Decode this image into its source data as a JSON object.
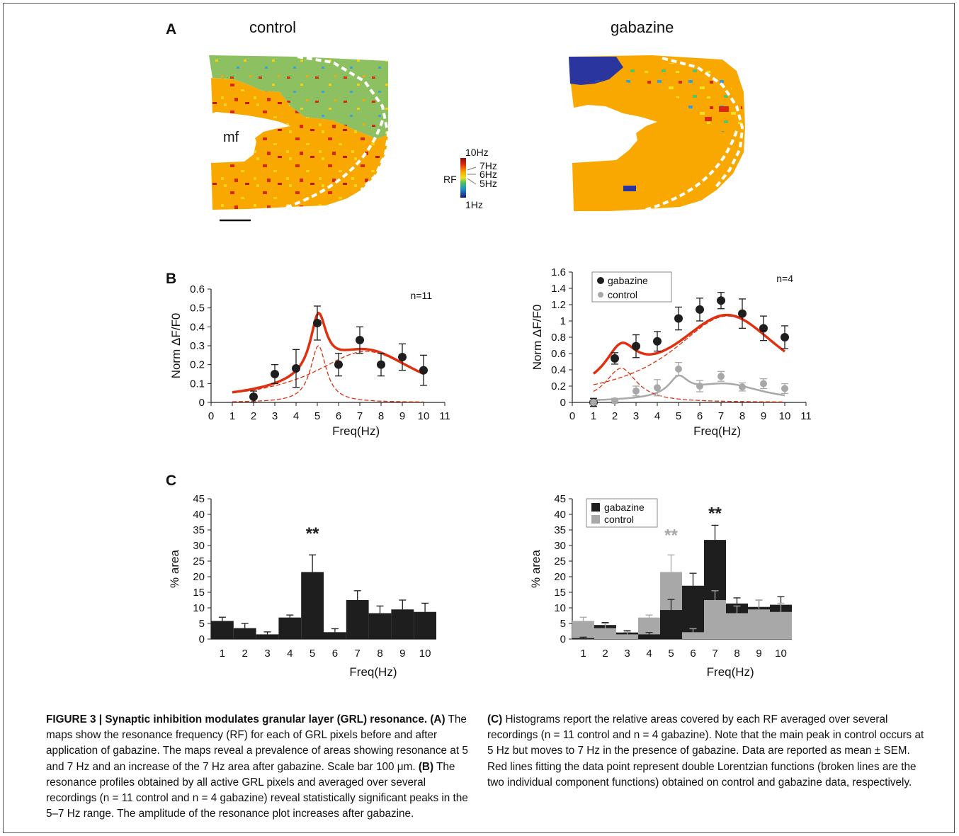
{
  "panel_labels": {
    "a": "A",
    "b": "B",
    "c": "C"
  },
  "panel_a": {
    "title_left": "control",
    "title_right": "gabazine",
    "mf_label": "mf",
    "colorbar": {
      "label": "RF",
      "top": "10Hz",
      "t7": "7Hz",
      "t6": "6Hz",
      "t5": "5Hz",
      "bottom": "1Hz"
    }
  },
  "colors": {
    "red": "#e03010",
    "black": "#1e1e1e",
    "gray": "#a8a8a8",
    "map_green": "#8cc060",
    "map_orange": "#f8a800"
  },
  "chart_data": [
    {
      "id": "b_left",
      "type": "line",
      "annotation": "n=11",
      "xlabel": "Freq(Hz)",
      "ylabel": "Norm ΔF/F0",
      "xlim": [
        0,
        11
      ],
      "ylim": [
        0,
        0.6
      ],
      "x_ticks": [
        "0",
        "1",
        "2",
        "3",
        "4",
        "5",
        "6",
        "7",
        "8",
        "9",
        "10",
        "11"
      ],
      "y_ticks": [
        "0",
        "0.1",
        "0.2",
        "0.3",
        "0.4",
        "0.5",
        "0.6"
      ],
      "series": [
        {
          "x": [
            2,
            3,
            4,
            5,
            6,
            7,
            8,
            9,
            10
          ],
          "y": [
            0.03,
            0.15,
            0.18,
            0.42,
            0.2,
            0.33,
            0.2,
            0.24,
            0.17
          ],
          "err": [
            0.03,
            0.05,
            0.1,
            0.09,
            0.06,
            0.07,
            0.06,
            0.07,
            0.08
          ]
        }
      ]
    },
    {
      "id": "b_right",
      "type": "line",
      "annotation": "n=4",
      "xlabel": "Freq(Hz)",
      "ylabel": "Norm ΔF/F0",
      "xlim": [
        0,
        11
      ],
      "ylim": [
        0,
        1.6
      ],
      "x_ticks": [
        "0",
        "1",
        "2",
        "3",
        "4",
        "5",
        "6",
        "7",
        "8",
        "9",
        "10",
        "11"
      ],
      "y_ticks": [
        "0",
        "0.2",
        "0.4",
        "0.6",
        "0.8",
        "1",
        "1.2",
        "1.4",
        "1.6"
      ],
      "legend": [
        "gabazine",
        "control"
      ],
      "series": [
        {
          "name": "gabazine",
          "x": [
            1,
            2,
            3,
            4,
            5,
            6,
            7,
            8,
            9,
            10
          ],
          "y": [
            0,
            0.54,
            0.69,
            0.75,
            1.03,
            1.14,
            1.25,
            1.09,
            0.91,
            0.8
          ],
          "err": [
            0.05,
            0.07,
            0.14,
            0.12,
            0.14,
            0.14,
            0.1,
            0.18,
            0.15,
            0.14
          ]
        },
        {
          "name": "control",
          "x": [
            1,
            2,
            3,
            4,
            5,
            6,
            7,
            8,
            9,
            10
          ],
          "y": [
            0,
            0.02,
            0.14,
            0.18,
            0.41,
            0.2,
            0.32,
            0.19,
            0.23,
            0.17
          ],
          "err": [
            0.03,
            0.03,
            0.06,
            0.1,
            0.08,
            0.07,
            0.06,
            0.05,
            0.06,
            0.06
          ]
        }
      ]
    },
    {
      "id": "c_left",
      "type": "bar",
      "xlabel": "Freq(Hz)",
      "ylabel": "% area",
      "ylim": [
        0,
        45
      ],
      "categories": [
        "1",
        "2",
        "3",
        "4",
        "5",
        "6",
        "7",
        "8",
        "9",
        "10"
      ],
      "y_ticks": [
        "0",
        "5",
        "10",
        "15",
        "20",
        "25",
        "30",
        "35",
        "40",
        "45"
      ],
      "significance": "**",
      "series": [
        {
          "values": [
            5.8,
            3.5,
            1.5,
            6.9,
            21.5,
            2.2,
            12.5,
            8.3,
            9.5,
            8.7
          ],
          "err": [
            1.2,
            1.5,
            0.8,
            0.8,
            5.5,
            1.1,
            3,
            2.3,
            3,
            2.8
          ]
        }
      ]
    },
    {
      "id": "c_right",
      "type": "bar",
      "xlabel": "Freq(Hz)",
      "ylabel": "% area",
      "ylim": [
        0,
        45
      ],
      "categories": [
        "1",
        "2",
        "3",
        "4",
        "5",
        "6",
        "7",
        "8",
        "9",
        "10"
      ],
      "y_ticks": [
        "0",
        "5",
        "10",
        "15",
        "20",
        "25",
        "30",
        "35",
        "40",
        "45"
      ],
      "legend": [
        "gabazine",
        "control"
      ],
      "significance_control": "**",
      "significance_gabazine": "**",
      "series": [
        {
          "name": "gabazine",
          "values": [
            0.3,
            4.5,
            2.1,
            1.5,
            9.3,
            17.1,
            31.8,
            11.4,
            10.3,
            11
          ],
          "err": [
            0.3,
            0.8,
            0.6,
            0.6,
            3.4,
            4,
            4.7,
            1.8,
            2.2,
            2.6
          ]
        },
        {
          "name": "control",
          "values": [
            5.8,
            3.5,
            1.5,
            6.9,
            21.5,
            2.2,
            12.5,
            8.3,
            9.5,
            8.7
          ],
          "err": [
            1.2,
            1.5,
            0.8,
            0.8,
            5.5,
            1.1,
            3,
            2.3,
            3,
            2.8
          ]
        }
      ]
    }
  ],
  "caption": {
    "fig": "FIGURE 3 | Synaptic inhibition modulates granular layer (GRL) resonance.",
    "a_tag": "(A)",
    "a_text": " The maps show the resonance frequency (RF) for each of GRL pixels before and after application of gabazine. The maps reveal a prevalence of areas showing resonance at 5 and 7 Hz and an increase of the 7 Hz area after gabazine. Scale bar 100 μm. ",
    "b_tag": "(B)",
    "b_text": " The resonance profiles obtained by all active GRL pixels and averaged over several recordings (n = 11 control and n = 4 gabazine) reveal statistically significant peaks in the 5–7 Hz range. The amplitude of the resonance plot increases after gabazine.",
    "c_tag": "(C)",
    "c_text": " Histograms report the relative areas covered by each RF averaged over several recordings (n = 11 control and n = 4 gabazine). Note that the main peak in control occurs at 5 Hz but moves to 7 Hz in the presence of gabazine. Data are reported as mean ± SEM. Red lines fitting the data point represent double Lorentzian functions (broken lines are the two individual component functions) obtained on control and gabazine data, respectively."
  }
}
